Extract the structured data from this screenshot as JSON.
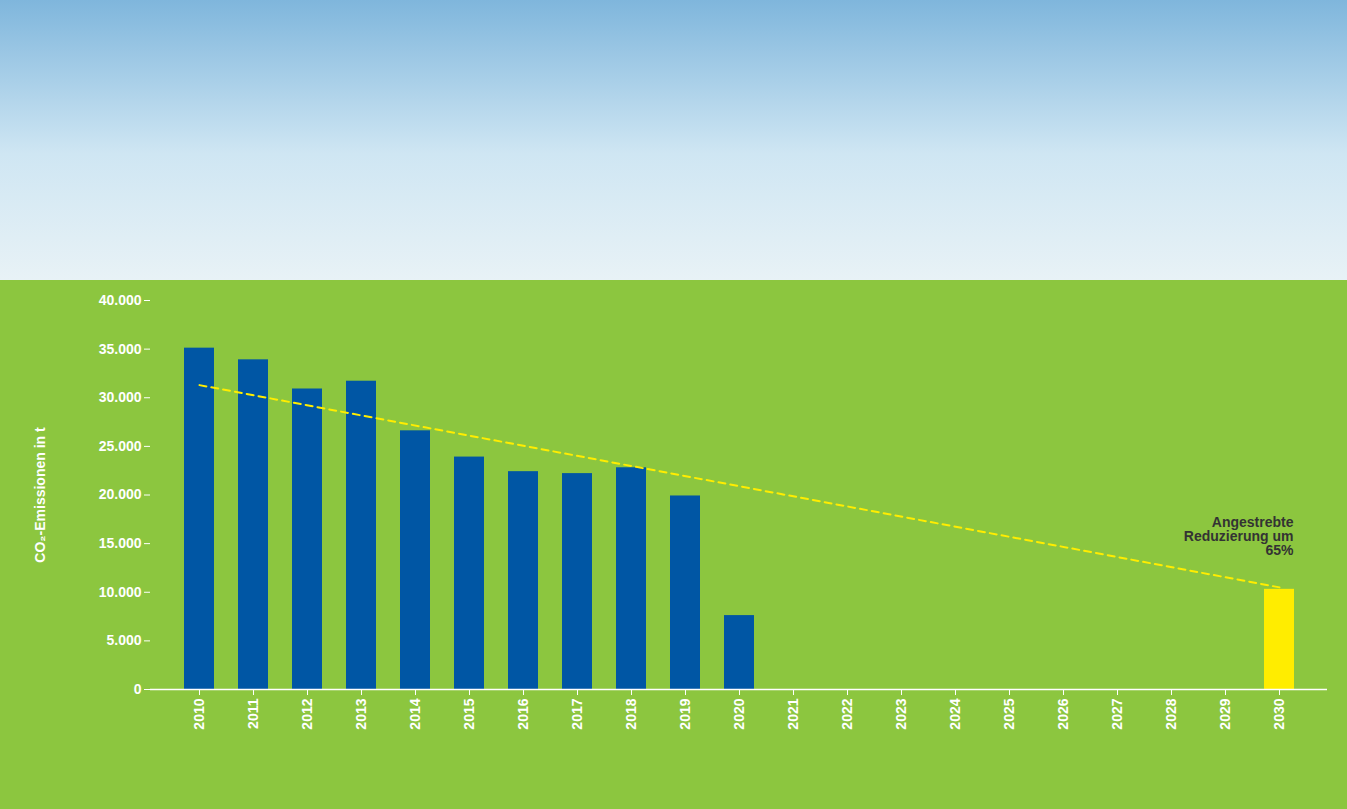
{
  "chart_data": {
    "type": "bar",
    "y_label": "CO₂-Emissionen in t",
    "categories": [
      "2010",
      "2011",
      "2012",
      "2013",
      "2014",
      "2015",
      "2016",
      "2017",
      "2018",
      "2019",
      "2020",
      "2021",
      "2022",
      "2023",
      "2024",
      "2025",
      "2026",
      "2027",
      "2028",
      "2029",
      "2030"
    ],
    "values": [
      35100,
      33900,
      30900,
      31700,
      26600,
      23900,
      22400,
      22200,
      22800,
      19900,
      7600,
      null,
      null,
      null,
      null,
      null,
      null,
      null,
      null,
      null,
      10300
    ],
    "colors": [
      "#0056a4",
      "#0056a4",
      "#0056a4",
      "#0056a4",
      "#0056a4",
      "#0056a4",
      "#0056a4",
      "#0056a4",
      "#0056a4",
      "#0056a4",
      "#0056a4",
      null,
      null,
      null,
      null,
      null,
      null,
      null,
      null,
      null,
      "#ffed00"
    ],
    "ylim": [
      0,
      40000
    ],
    "yticks": [
      0,
      {
        "value": 5000,
        "label": "5.000"
      },
      {
        "value": 10000,
        "label": "10.000"
      },
      {
        "value": 15000,
        "label": "15.000"
      },
      {
        "value": 20000,
        "label": "20.000"
      },
      {
        "value": 25000,
        "label": "25.000"
      },
      {
        "value": 30000,
        "label": "30.000"
      },
      {
        "value": 35000,
        "label": "35.000"
      },
      {
        "value": 40000,
        "label": "40.000"
      }
    ],
    "grid": false,
    "trend": {
      "x": [
        "2010",
        "2030"
      ],
      "values": [
        31300,
        10500
      ],
      "color": "#ffed00",
      "line_style": "dashed"
    },
    "annotation": "Angestrebte Reduzierung um 65%"
  }
}
